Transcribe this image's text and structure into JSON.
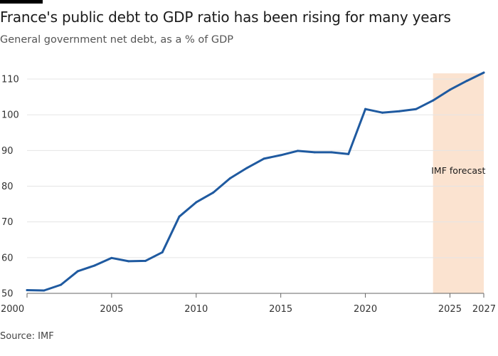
{
  "header": {
    "title": "France's public debt to GDP ratio has been rising for many years",
    "subtitle": "General government net debt, as a % of GDP"
  },
  "footer": {
    "source": "Source: IMF"
  },
  "colors": {
    "line": "#1f5aa0",
    "forecast_band": "#fbe3d0",
    "grid": "#e5e5e5",
    "axis": "#666666"
  },
  "chart_data": {
    "type": "line",
    "title": "France's public debt to GDP ratio has been rising for many years",
    "subtitle": "General government net debt, as a % of GDP",
    "xlabel": "",
    "ylabel": "",
    "xlim": [
      2000,
      2027
    ],
    "ylim": [
      50,
      113
    ],
    "x_ticks": [
      2000,
      2005,
      2010,
      2015,
      2020,
      2025,
      2027
    ],
    "y_ticks": [
      50,
      60,
      70,
      80,
      90,
      100,
      110
    ],
    "grid": true,
    "forecast": {
      "label": "IMF forecast",
      "start": 2024,
      "end": 2027
    },
    "series": [
      {
        "x": [
          2000,
          2001,
          2002,
          2003,
          2004,
          2005,
          2006,
          2007,
          2008,
          2009,
          2010,
          2011,
          2012,
          2013,
          2014,
          2015,
          2016,
          2017,
          2018,
          2019,
          2020,
          2021,
          2022,
          2023,
          2024,
          2025,
          2026,
          2027
        ],
        "values": [
          50.9,
          50.8,
          52.4,
          56.2,
          57.8,
          59.9,
          59.0,
          59.1,
          61.5,
          71.5,
          75.5,
          78.2,
          82.2,
          85.1,
          87.7,
          88.7,
          89.9,
          89.5,
          89.5,
          89.0,
          101.6,
          100.6,
          101.0,
          101.6,
          104.0,
          107.0,
          109.5,
          111.8
        ]
      }
    ]
  }
}
